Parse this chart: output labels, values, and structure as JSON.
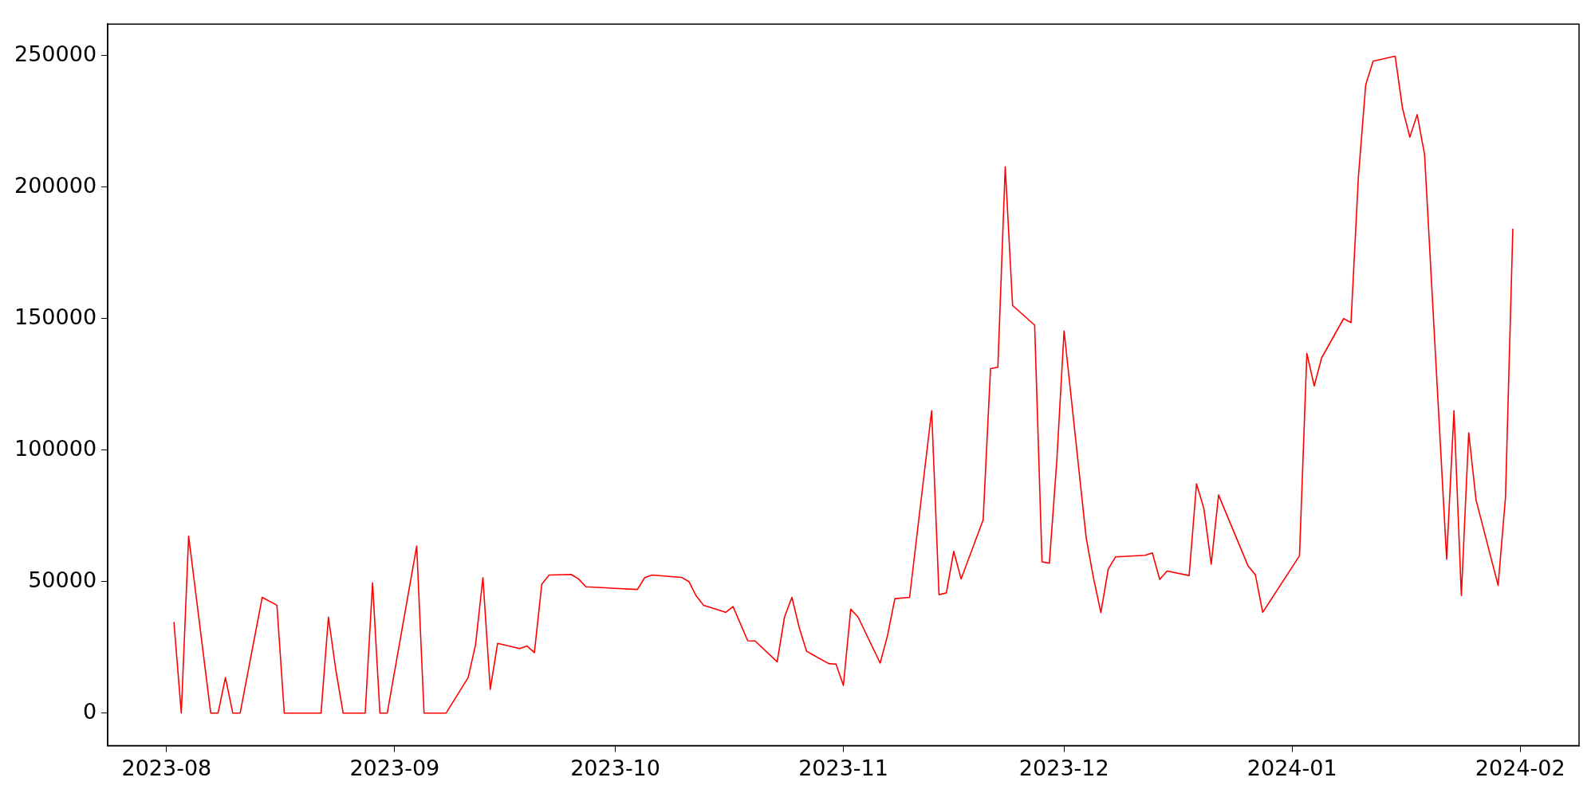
{
  "chart_data": {
    "type": "line",
    "x": [
      "2023-08-02",
      "2023-08-03",
      "2023-08-04",
      "2023-08-07",
      "2023-08-08",
      "2023-08-09",
      "2023-08-10",
      "2023-08-11",
      "2023-08-14",
      "2023-08-16",
      "2023-08-17",
      "2023-08-22",
      "2023-08-23",
      "2023-08-24",
      "2023-08-25",
      "2023-08-28",
      "2023-08-29",
      "2023-08-30",
      "2023-08-31",
      "2023-09-04",
      "2023-09-05",
      "2023-09-08",
      "2023-09-11",
      "2023-09-12",
      "2023-09-13",
      "2023-09-14",
      "2023-09-15",
      "2023-09-18",
      "2023-09-19",
      "2023-09-20",
      "2023-09-21",
      "2023-09-22",
      "2023-09-25",
      "2023-09-26",
      "2023-09-27",
      "2023-10-04",
      "2023-10-05",
      "2023-10-06",
      "2023-10-10",
      "2023-10-11",
      "2023-10-12",
      "2023-10-13",
      "2023-10-16",
      "2023-10-17",
      "2023-10-19",
      "2023-10-20",
      "2023-10-23",
      "2023-10-24",
      "2023-10-25",
      "2023-10-26",
      "2023-10-27",
      "2023-10-30",
      "2023-10-31",
      "2023-11-01",
      "2023-11-02",
      "2023-11-03",
      "2023-11-06",
      "2023-11-07",
      "2023-11-08",
      "2023-11-10",
      "2023-11-13",
      "2023-11-14",
      "2023-11-15",
      "2023-11-16",
      "2023-11-17",
      "2023-11-20",
      "2023-11-21",
      "2023-11-22",
      "2023-11-23",
      "2023-11-24",
      "2023-11-27",
      "2023-11-28",
      "2023-11-29",
      "2023-11-30",
      "2023-12-01",
      "2023-12-04",
      "2023-12-05",
      "2023-12-06",
      "2023-12-07",
      "2023-12-08",
      "2023-12-12",
      "2023-12-13",
      "2023-12-14",
      "2023-12-15",
      "2023-12-18",
      "2023-12-19",
      "2023-12-20",
      "2023-12-21",
      "2023-12-22",
      "2023-12-26",
      "2023-12-27",
      "2023-12-28",
      "2024-01-02",
      "2024-01-03",
      "2024-01-04",
      "2024-01-05",
      "2024-01-08",
      "2024-01-09",
      "2024-01-10",
      "2024-01-11",
      "2024-01-12",
      "2024-01-15",
      "2024-01-16",
      "2024-01-17",
      "2024-01-18",
      "2024-01-19",
      "2024-01-22",
      "2024-01-23",
      "2024-01-24",
      "2024-01-25",
      "2024-01-26",
      "2024-01-29",
      "2024-01-30",
      "2024-01-31"
    ],
    "series": [
      {
        "color": "#ff0000",
        "values": [
          34600,
          0,
          67300,
          0,
          0,
          13500,
          0,
          0,
          44000,
          41000,
          0,
          0,
          36500,
          16500,
          0,
          0,
          49500,
          0,
          0,
          63500,
          0,
          0,
          13500,
          26000,
          51500,
          9000,
          26500,
          24500,
          25500,
          23000,
          49000,
          52500,
          52700,
          51000,
          48000,
          47000,
          51500,
          52500,
          51600,
          50000,
          44500,
          41000,
          38300,
          40500,
          27500,
          27400,
          19500,
          36500,
          44000,
          32500,
          23500,
          18800,
          18600,
          10500,
          39500,
          36500,
          19000,
          29500,
          43500,
          44000,
          115000,
          45000,
          45700,
          61500,
          51000,
          73500,
          131000,
          131500,
          207700,
          155000,
          147500,
          57500,
          57000,
          95500,
          145300,
          66700,
          51300,
          38200,
          54700,
          59400,
          60000,
          60900,
          50800,
          54000,
          52300,
          87200,
          77800,
          56600,
          82900,
          56000,
          52600,
          38300,
          59800,
          136800,
          124400,
          135000,
          150000,
          148500,
          203600,
          238900,
          247900,
          249800,
          230000,
          219000,
          227600,
          212400,
          58500,
          115000,
          44700,
          106600,
          81000,
          48500,
          82000,
          184200
        ]
      }
    ],
    "xlim": [
      "2023-07-24",
      "2024-02-09"
    ],
    "xticks": [
      "2023-08",
      "2023-09",
      "2023-10",
      "2023-11",
      "2023-12",
      "2024-01",
      "2024-02"
    ],
    "ylim": [
      -12400,
      262000
    ],
    "yticks": [
      0,
      50000,
      100000,
      150000,
      200000,
      250000
    ],
    "grid": false,
    "legend": false,
    "line_style": "solid",
    "marker": "none"
  }
}
